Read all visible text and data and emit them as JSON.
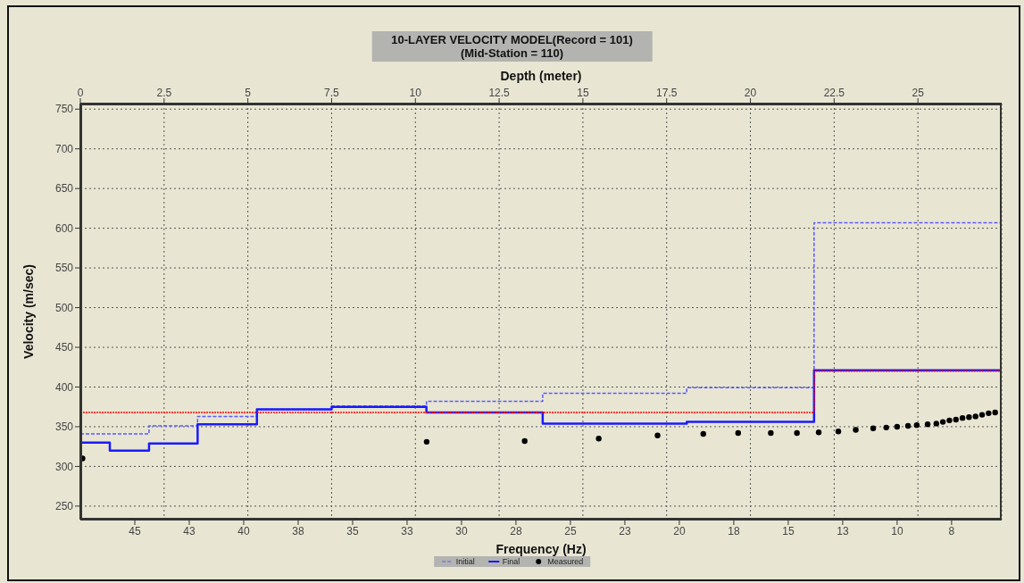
{
  "chart_data": {
    "type": "step",
    "title": "10-LAYER VELOCITY MODEL(Record = 101)",
    "subtitle": "(Mid-Station = 110)",
    "xlabel": "Frequency (Hz)",
    "x2label": "Depth (meter)",
    "ylabel": "Velocity (m/sec)",
    "xlim": [
      47.7,
      5.4
    ],
    "xticks": [
      {
        "value": 45.2,
        "label": "45"
      },
      {
        "value": 42.7,
        "label": "43"
      },
      {
        "value": 40.2,
        "label": "40"
      },
      {
        "value": 37.7,
        "label": "38"
      },
      {
        "value": 35.2,
        "label": "35"
      },
      {
        "value": 32.7,
        "label": "33"
      },
      {
        "value": 30.2,
        "label": "30"
      },
      {
        "value": 27.7,
        "label": "28"
      },
      {
        "value": 25.2,
        "label": "25"
      },
      {
        "value": 22.7,
        "label": "23"
      },
      {
        "value": 20.2,
        "label": "20"
      },
      {
        "value": 17.7,
        "label": "18"
      },
      {
        "value": 15.2,
        "label": "15"
      },
      {
        "value": 12.7,
        "label": "13"
      },
      {
        "value": 10.2,
        "label": "10"
      },
      {
        "value": 7.7,
        "label": "8"
      }
    ],
    "x2lim": [
      0,
      27.5
    ],
    "x2ticks": [
      0,
      2.5,
      5,
      7.5,
      10,
      12.5,
      15,
      17.5,
      20,
      22.5,
      25
    ],
    "ylim": [
      233,
      757
    ],
    "yticks": [
      250,
      300,
      350,
      400,
      450,
      500,
      550,
      600,
      650,
      700,
      750
    ],
    "grid": true,
    "legend": "bottom",
    "series": [
      {
        "name": "Initial",
        "axis": "x2",
        "color": "#5a5aff",
        "line_style": "dashed",
        "marker": "none",
        "x": [
          0,
          2.05,
          3.5,
          5.27,
          7.5,
          10.33,
          13.8,
          18.1,
          21.9,
          27.48
        ],
        "values": [
          341,
          351,
          363,
          372,
          376,
          382,
          392,
          399,
          607,
          607
        ]
      },
      {
        "name": "Final",
        "axis": "x2",
        "color": "#1a1aff",
        "line_style": "solid",
        "marker": "none",
        "x": [
          0,
          0.88,
          2.05,
          3.5,
          5.27,
          7.5,
          10.33,
          13.8,
          18.1,
          21.9,
          27.48
        ],
        "values": [
          330,
          320,
          329,
          353,
          372,
          375,
          368,
          354,
          356,
          421,
          421
        ]
      },
      {
        "axis": "x2",
        "color": "#ff0000",
        "line_style": "dotted",
        "marker": "none",
        "x": [
          0,
          21.9,
          27.48
        ],
        "values": [
          368,
          420,
          420
        ]
      },
      {
        "name": "Measured",
        "type": "scatter",
        "color": "#000000",
        "marker": "circle",
        "x": [
          47.6,
          31.8,
          27.3,
          23.9,
          21.2,
          19.1,
          17.5,
          16.0,
          14.8,
          13.8,
          12.9,
          12.1,
          11.3,
          10.7,
          10.2,
          9.7,
          9.3,
          8.8,
          8.4,
          8.1,
          7.8,
          7.5,
          7.2,
          6.9,
          6.6,
          6.3,
          6.0,
          5.7
        ],
        "values": [
          310,
          331,
          332,
          335,
          339,
          341,
          342,
          342,
          342,
          343,
          344,
          346,
          348,
          349,
          350,
          351,
          352,
          353,
          354,
          356,
          358,
          359,
          361,
          362,
          363,
          365,
          367,
          368
        ]
      }
    ]
  }
}
